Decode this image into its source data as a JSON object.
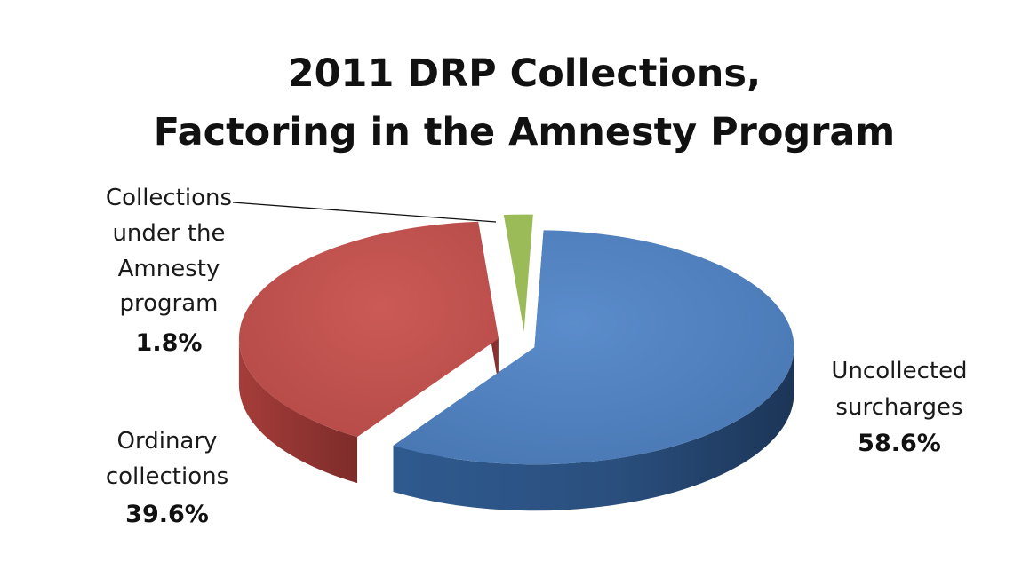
{
  "chart_data": {
    "type": "pie",
    "title_lines": [
      "2011 DRP Collections,",
      "Factoring in the Amnesty Program"
    ],
    "slices": [
      {
        "label_lines": [
          "Uncollected",
          "surcharges"
        ],
        "value": 58.6,
        "value_label": "58.6%",
        "color": "#4F81BD"
      },
      {
        "label_lines": [
          "Ordinary",
          "collections"
        ],
        "value": 39.6,
        "value_label": "39.6%",
        "color": "#C0504D"
      },
      {
        "label_lines": [
          "Collections",
          "under the",
          "Amnesty",
          "program"
        ],
        "value": 1.8,
        "value_label": "1.8%",
        "color": "#9BBB59"
      }
    ],
    "style": "3d-exploded",
    "legend": "none",
    "leader_line_for": "Collections under the Amnesty program"
  }
}
